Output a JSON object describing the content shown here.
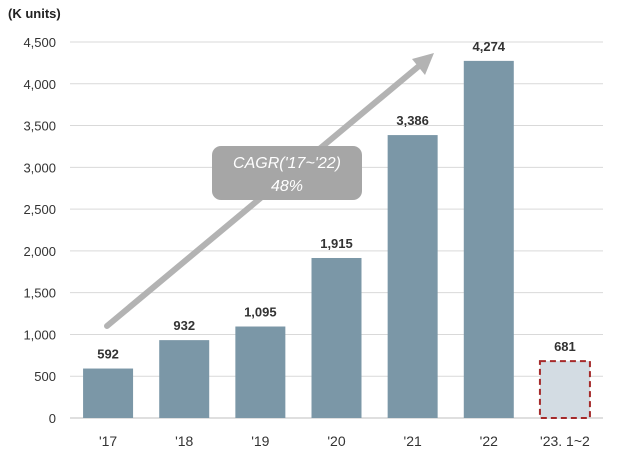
{
  "chart_data": {
    "type": "bar",
    "unit_label": "(K units)",
    "categories": [
      "'17",
      "'18",
      "'19",
      "'20",
      "'21",
      "'22",
      "'23. 1~2"
    ],
    "values": [
      592,
      932,
      1095,
      1915,
      3386,
      4274,
      681
    ],
    "value_labels": [
      "592",
      "932",
      "1,095",
      "1,915",
      "3,386",
      "4,274",
      "681"
    ],
    "ylim": [
      0,
      4500
    ],
    "yticks": [
      0,
      500,
      1000,
      1500,
      2000,
      2500,
      3000,
      3500,
      4000,
      4500
    ],
    "ytick_labels": [
      "0",
      "500",
      "1,000",
      "1,500",
      "2,000",
      "2,500",
      "3,000",
      "3,500",
      "4,000",
      "4,500"
    ],
    "grid": true,
    "annotation": {
      "line1": "CAGR('17~'22)",
      "line2": "48%"
    },
    "colors": {
      "bar": "#7B97A7",
      "partial_bar_fill": "#D3DCE3",
      "partial_bar_border": "#A52A2A",
      "partial_label": "#B22222",
      "arrow": "#B3B3B3",
      "annotation_box": "#A6A6A6",
      "grid": "#D9D9D9"
    }
  }
}
